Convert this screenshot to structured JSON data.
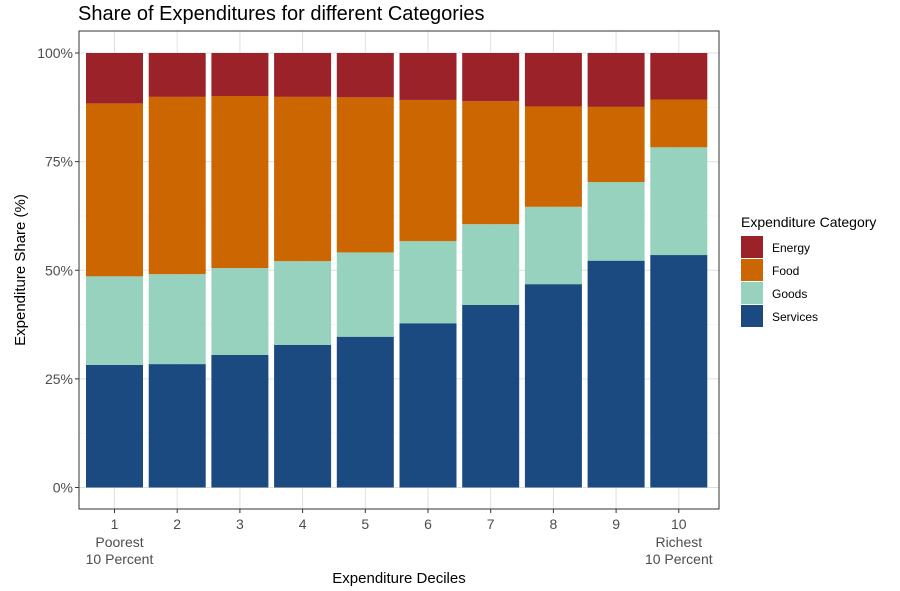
{
  "chart_data": {
    "type": "bar",
    "stacked": true,
    "title": "Share of Expenditures for different Categories",
    "xlabel": "Expenditure Deciles",
    "ylabel": "Expenditure Share (%)",
    "categories": [
      "1",
      "2",
      "3",
      "4",
      "5",
      "6",
      "7",
      "8",
      "9",
      "10"
    ],
    "category_sublabels": {
      "1": [
        "Poorest",
        "10 Percent"
      ],
      "10": [
        "Richest",
        "10 Percent"
      ]
    },
    "ylim": [
      0,
      100
    ],
    "yticks": [
      {
        "value": 0,
        "label": "0%"
      },
      {
        "value": 25,
        "label": "25%"
      },
      {
        "value": 50,
        "label": "50%"
      },
      {
        "value": 75,
        "label": "75%"
      },
      {
        "value": 100,
        "label": "100%"
      }
    ],
    "grid": true,
    "legend": {
      "title": "Expenditure Category",
      "position": "right",
      "entries": [
        "Energy",
        "Food",
        "Goods",
        "Services"
      ]
    },
    "series": [
      {
        "name": "Services",
        "color": "#1a4a80",
        "values": [
          28.2,
          28.4,
          30.5,
          32.8,
          34.7,
          37.8,
          42.0,
          46.8,
          52.2,
          53.5
        ]
      },
      {
        "name": "Goods",
        "color": "#96d2bd",
        "values": [
          20.4,
          20.7,
          20.0,
          19.3,
          19.4,
          18.9,
          18.6,
          17.8,
          18.1,
          24.8
        ]
      },
      {
        "name": "Food",
        "color": "#cc6600",
        "values": [
          39.8,
          40.8,
          39.6,
          37.8,
          35.7,
          32.5,
          28.3,
          23.1,
          17.3,
          11.0
        ]
      },
      {
        "name": "Energy",
        "color": "#9c2229",
        "values": [
          11.6,
          10.1,
          9.9,
          10.1,
          10.2,
          10.8,
          11.1,
          12.3,
          12.4,
          10.7
        ]
      }
    ]
  }
}
